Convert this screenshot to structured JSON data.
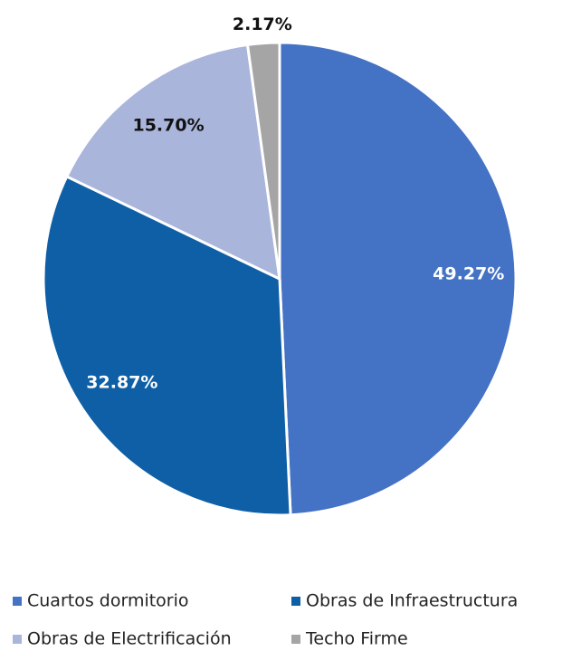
{
  "chart_data": {
    "type": "pie",
    "categories": [
      "Cuartos dormitorio",
      "Obras de Infraestructura",
      "Obras de Electrificación",
      "Techo Firme"
    ],
    "values": [
      49.27,
      32.87,
      15.7,
      2.17
    ],
    "value_labels": [
      "49.27%",
      "32.87%",
      "15.70%",
      "2.17%"
    ],
    "colors": [
      "#4472c4",
      "#0f5fa6",
      "#a9b5db",
      "#a5a5a5"
    ],
    "legend": "bottom"
  }
}
